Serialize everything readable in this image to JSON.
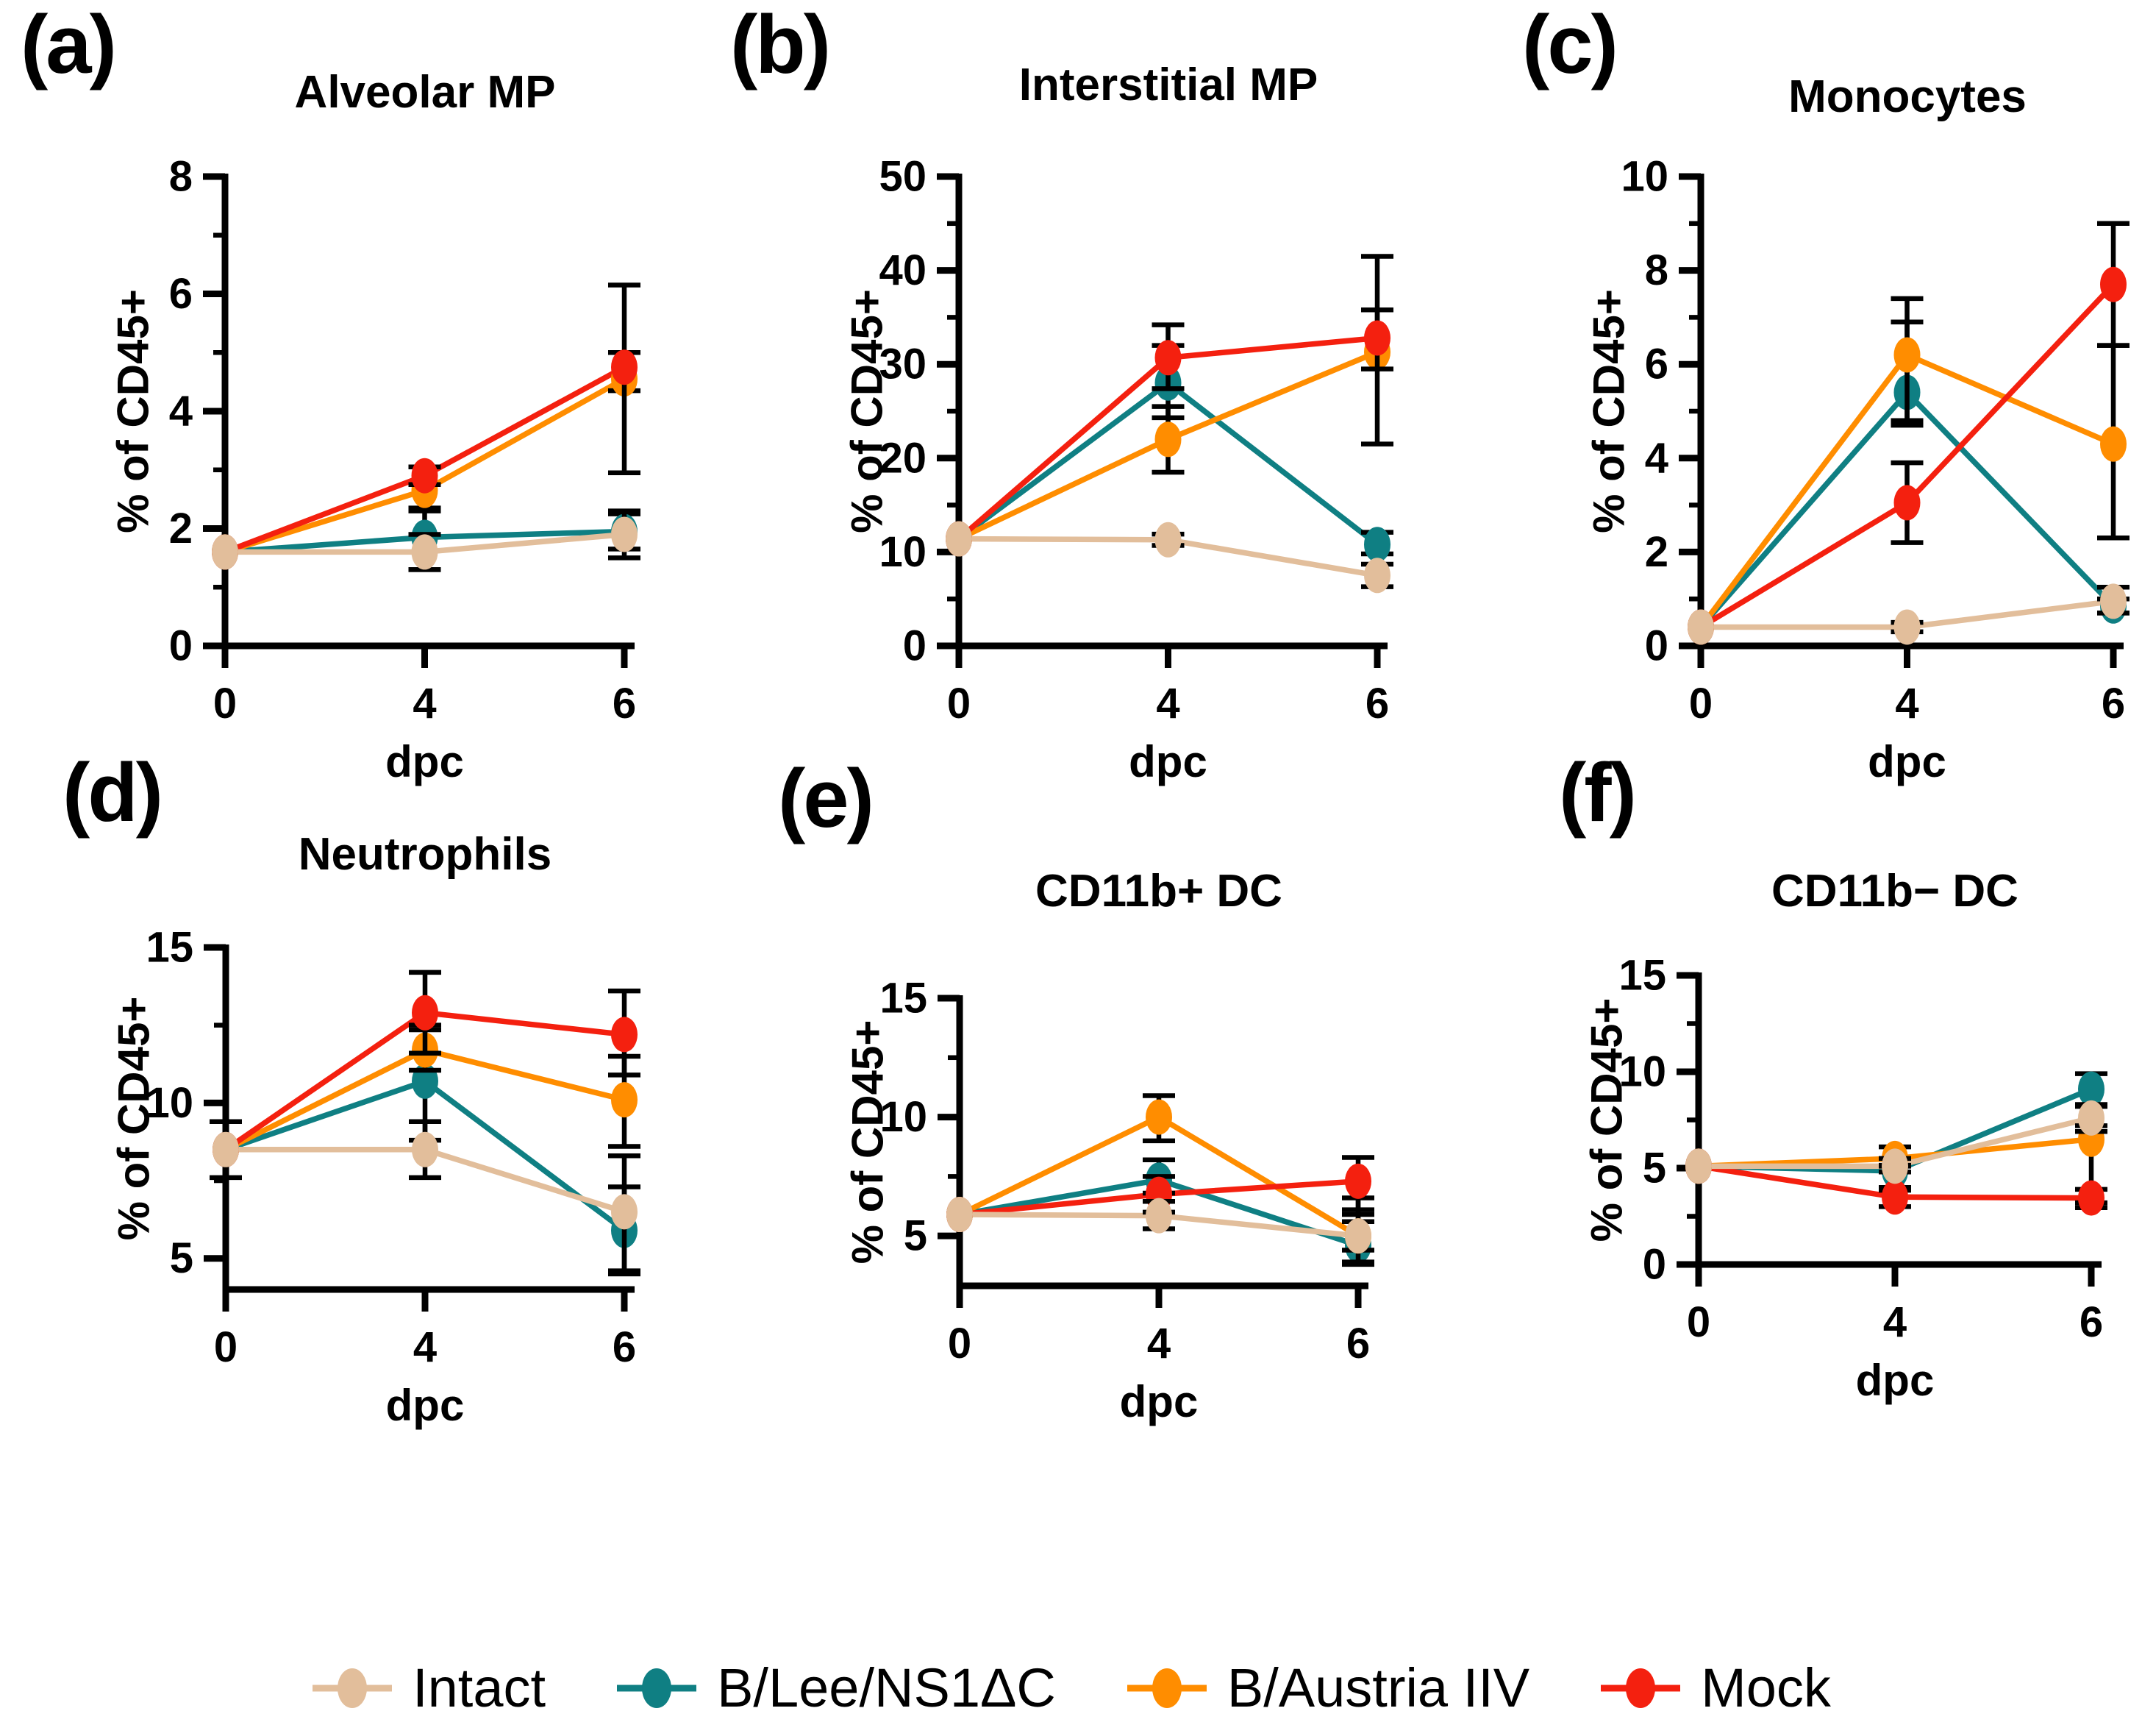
{
  "figure": {
    "background": "#FFFFFF"
  },
  "colors": {
    "intact": "#E2BE9B",
    "blee": "#0F7F83",
    "baustria": "#FF8D00",
    "mock": "#F4200F"
  },
  "legend": {
    "items": [
      {
        "label": "Intact",
        "color_key": "intact"
      },
      {
        "label": "B/Lee/NS1ΔC",
        "color_key": "blee"
      },
      {
        "label": "B/Austria IIV",
        "color_key": "baustria"
      },
      {
        "label": "Mock",
        "color_key": "mock"
      }
    ]
  },
  "chart_data": [
    {
      "panel_id": "a",
      "panel_label": "(a)",
      "title": "Alveolar MP",
      "type": "line",
      "x": [
        0,
        4,
        6
      ],
      "xlabel": "dpc",
      "ylabel": "% of CD45+",
      "ylim": [
        0,
        8
      ],
      "yticks": [
        0,
        2,
        4,
        6,
        8
      ],
      "yticks_minor": [
        1,
        3,
        5,
        7
      ],
      "grid": false,
      "legend_position": "bottom-shared",
      "series": [
        {
          "name": "Intact",
          "color_key": "intact",
          "values": [
            1.6,
            1.6,
            1.9
          ],
          "err": [
            [
              0,
              0
            ],
            [
              0.3,
              0.3
            ],
            [
              0.4,
              0.4
            ]
          ]
        },
        {
          "name": "B/Lee/NS1ΔC",
          "color_key": "blee",
          "values": [
            1.6,
            1.85,
            1.95
          ],
          "err": [
            [
              0,
              0
            ],
            [
              0.55,
              0.45
            ],
            [
              0.3,
              0.3
            ]
          ]
        },
        {
          "name": "B/Austria IIV",
          "color_key": "baustria",
          "values": [
            1.6,
            2.65,
            4.55
          ],
          "err": [
            [
              0,
              0
            ],
            [
              0.3,
              0.4
            ],
            [
              0.2,
              0.45
            ]
          ]
        },
        {
          "name": "Mock",
          "color_key": "mock",
          "values": [
            1.6,
            2.9,
            4.75
          ],
          "err": [
            [
              0,
              0
            ],
            [
              0.15,
              0.15
            ],
            [
              1.8,
              1.4
            ]
          ]
        }
      ]
    },
    {
      "panel_id": "b",
      "panel_label": "(b)",
      "title": "Interstitial MP",
      "type": "line",
      "x": [
        0,
        4,
        6
      ],
      "xlabel": "dpc",
      "ylabel": "% of CD45+",
      "ylim": [
        0,
        50
      ],
      "yticks": [
        0,
        10,
        20,
        30,
        40,
        50
      ],
      "yticks_minor": [
        5,
        15,
        25,
        35,
        45
      ],
      "grid": false,
      "legend_position": "bottom-shared",
      "series": [
        {
          "name": "Intact",
          "color_key": "intact",
          "values": [
            11.4,
            11.3,
            7.5
          ],
          "err": [
            [
              0,
              0
            ],
            [
              0.6,
              0.6
            ],
            [
              1.2,
              1.2
            ]
          ]
        },
        {
          "name": "B/Lee/NS1ΔC",
          "color_key": "blee",
          "values": [
            11.4,
            28.0,
            10.8
          ],
          "err": [
            [
              0,
              0
            ],
            [
              3.7,
              4.0
            ],
            [
              1.0,
              1.3
            ]
          ]
        },
        {
          "name": "B/Austria IIV",
          "color_key": "baustria",
          "values": [
            11.4,
            22.0,
            31.3
          ],
          "err": [
            [
              0,
              0
            ],
            [
              3.5,
              3.5
            ],
            [
              9.8,
              4.5
            ]
          ]
        },
        {
          "name": "Mock",
          "color_key": "mock",
          "values": [
            11.4,
            30.7,
            32.8
          ],
          "err": [
            [
              0,
              0
            ],
            [
              3.3,
              3.5
            ],
            [
              3.3,
              8.7
            ]
          ]
        }
      ]
    },
    {
      "panel_id": "c",
      "panel_label": "(c)",
      "title": "Monocytes",
      "type": "line",
      "x": [
        0,
        4,
        6
      ],
      "xlabel": "dpc",
      "ylabel": "% of CD45+",
      "ylim": [
        0,
        10
      ],
      "yticks": [
        0,
        2,
        4,
        6,
        8,
        10
      ],
      "yticks_minor": [
        1,
        3,
        5,
        7,
        9
      ],
      "grid": false,
      "legend_position": "bottom-shared",
      "series": [
        {
          "name": "Intact",
          "color_key": "intact",
          "values": [
            0.4,
            0.4,
            0.95
          ],
          "err": [
            [
              0,
              0
            ],
            [
              0.1,
              0.1
            ],
            [
              0.25,
              0.3
            ]
          ]
        },
        {
          "name": "B/Lee/NS1ΔC",
          "color_key": "blee",
          "values": [
            0.4,
            5.4,
            0.85
          ],
          "err": [
            [
              0,
              0
            ],
            [
              0.7,
              1.5
            ],
            [
              0.15,
              0.15
            ]
          ]
        },
        {
          "name": "B/Austria IIV",
          "color_key": "baustria",
          "values": [
            0.4,
            6.2,
            4.3
          ],
          "err": [
            [
              0,
              0
            ],
            [
              1.4,
              1.2
            ],
            [
              2.0,
              2.1
            ]
          ]
        },
        {
          "name": "Mock",
          "color_key": "mock",
          "values": [
            0.4,
            3.05,
            7.7
          ],
          "err": [
            [
              0,
              0
            ],
            [
              0.85,
              0.85
            ],
            [
              1.3,
              1.3
            ]
          ]
        }
      ]
    },
    {
      "panel_id": "d",
      "panel_label": "(d)",
      "title": "Neutrophils",
      "type": "line",
      "x": [
        0,
        4,
        6
      ],
      "xlabel": "dpc",
      "ylabel": "% of CD45+",
      "ylim": [
        4,
        15
      ],
      "yticks": [
        5,
        10,
        15
      ],
      "yticks_minor": [
        7.5,
        12.5
      ],
      "grid": false,
      "legend_position": "bottom-shared",
      "series": [
        {
          "name": "Intact",
          "color_key": "intact",
          "values": [
            8.5,
            8.5,
            6.5
          ],
          "err": [
            [
              0.9,
              0.9
            ],
            [
              0.9,
              0.9
            ],
            [
              1.9,
              1.8
            ]
          ]
        },
        {
          "name": "B/Lee/NS1ΔC",
          "color_key": "blee",
          "values": [
            8.5,
            10.7,
            5.9
          ],
          "err": [
            [
              0,
              0
            ],
            [
              1.9,
              1.8
            ],
            [
              1.4,
              1.4
            ]
          ]
        },
        {
          "name": "B/Austria IIV",
          "color_key": "baustria",
          "values": [
            8.5,
            11.7,
            10.1
          ],
          "err": [
            [
              0,
              0
            ],
            [
              0.65,
              0.65
            ],
            [
              1.5,
              1.4
            ]
          ]
        },
        {
          "name": "Mock",
          "color_key": "mock",
          "values": [
            8.5,
            12.9,
            12.2
          ],
          "err": [
            [
              0,
              0
            ],
            [
              1.3,
              1.3
            ],
            [
              1.3,
              1.4
            ]
          ]
        }
      ]
    },
    {
      "panel_id": "e",
      "panel_label": "(e)",
      "title": "CD11b+ DC",
      "type": "line",
      "x": [
        0,
        4,
        6
      ],
      "xlabel": "dpc",
      "ylabel": "% of CD45+",
      "ylim": [
        2.9,
        15
      ],
      "yticks": [
        5,
        10,
        15
      ],
      "yticks_minor": [
        7.5,
        12.5
      ],
      "grid": false,
      "legend_position": "bottom-shared",
      "series": [
        {
          "name": "Intact",
          "color_key": "intact",
          "values": [
            5.9,
            5.85,
            5.0
          ],
          "err": [
            [
              0,
              0
            ],
            [
              0.55,
              0.6
            ],
            [
              0.6,
              0.6
            ]
          ]
        },
        {
          "name": "B/Lee/NS1ΔC",
          "color_key": "blee",
          "values": [
            5.9,
            7.35,
            4.6
          ],
          "err": [
            [
              0,
              0
            ],
            [
              0.55,
              0.85
            ],
            [
              0.8,
              2.0
            ]
          ]
        },
        {
          "name": "B/Austria IIV",
          "color_key": "baustria",
          "values": [
            5.9,
            10.0,
            5.0
          ],
          "err": [
            [
              0,
              0
            ],
            [
              1.0,
              0.9
            ],
            [
              1.1,
              0.9
            ]
          ]
        },
        {
          "name": "Mock",
          "color_key": "mock",
          "values": [
            5.9,
            6.75,
            7.3
          ],
          "err": [
            [
              0,
              0
            ],
            [
              0.75,
              0.75
            ],
            [
              1.2,
              1.0
            ]
          ]
        }
      ]
    },
    {
      "panel_id": "f",
      "panel_label": "(f)",
      "title": "CD11b− DC",
      "type": "line",
      "x": [
        0,
        4,
        6
      ],
      "xlabel": "dpc",
      "ylabel": "% of CD45+",
      "ylim": [
        0,
        15
      ],
      "yticks": [
        0,
        5,
        10,
        15
      ],
      "yticks_minor": [
        2.5,
        7.5,
        12.5
      ],
      "grid": false,
      "legend_position": "bottom-shared",
      "series": [
        {
          "name": "Intact",
          "color_key": "intact",
          "values": [
            5.1,
            5.1,
            7.6
          ],
          "err": [
            [
              0,
              0
            ],
            [
              0.3,
              0.4
            ],
            [
              0.7,
              0.7
            ]
          ]
        },
        {
          "name": "B/Lee/NS1ΔC",
          "color_key": "blee",
          "values": [
            5.1,
            4.85,
            9.1
          ],
          "err": [
            [
              0,
              0
            ],
            [
              1.0,
              0.3
            ],
            [
              0.9,
              0.8
            ]
          ]
        },
        {
          "name": "B/Austria IIV",
          "color_key": "baustria",
          "values": [
            5.1,
            5.5,
            6.5
          ],
          "err": [
            [
              0,
              0
            ],
            [
              0.4,
              0.6
            ],
            [
              3.3,
              0.7
            ]
          ]
        },
        {
          "name": "Mock",
          "color_key": "mock",
          "values": [
            5.1,
            3.5,
            3.45
          ],
          "err": [
            [
              0,
              0
            ],
            [
              0.5,
              0.5
            ],
            [
              0.5,
              0.45
            ]
          ]
        }
      ]
    }
  ]
}
